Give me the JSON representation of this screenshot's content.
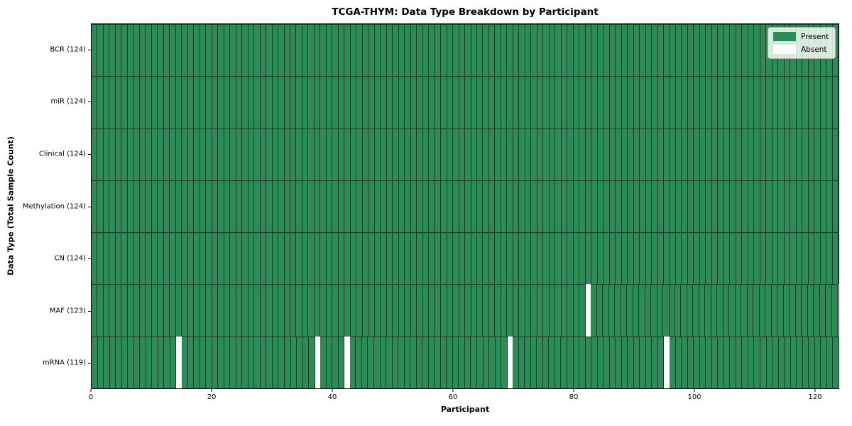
{
  "chart_data": {
    "type": "heatmap",
    "title": "TCGA-THYM: Data Type Breakdown by Participant",
    "xlabel": "Participant",
    "ylabel": "Data Type (Total Sample Count)",
    "n_participants": 124,
    "xlim": [
      0,
      124
    ],
    "x_ticks": [
      0,
      20,
      40,
      60,
      80,
      100,
      120
    ],
    "rows": [
      {
        "label": "BCR (124)",
        "data_type": "BCR",
        "total": 124,
        "absent_participants": []
      },
      {
        "label": "miR (124)",
        "data_type": "miR",
        "total": 124,
        "absent_participants": []
      },
      {
        "label": "Clinical (124)",
        "data_type": "Clinical",
        "total": 124,
        "absent_participants": []
      },
      {
        "label": "Methylation (124)",
        "data_type": "Methylation",
        "total": 124,
        "absent_participants": []
      },
      {
        "label": "CN (124)",
        "data_type": "CN",
        "total": 124,
        "absent_participants": []
      },
      {
        "label": "MAF (123)",
        "data_type": "MAF",
        "total": 123,
        "absent_participants": [
          82
        ]
      },
      {
        "label": "mRNA (119)",
        "data_type": "mRNA",
        "total": 119,
        "absent_participants": [
          14,
          37,
          42,
          69,
          95
        ]
      }
    ],
    "legend": [
      {
        "label": "Present",
        "color": "#2e8b57"
      },
      {
        "label": "Absent",
        "color": "#ffffff"
      }
    ],
    "legend_position": "upper right",
    "colors": {
      "present": "#2e8b57",
      "absent": "#ffffff",
      "cell_edge": "rgba(0,0,0,0.55)",
      "frame": "#000000"
    },
    "grid": "cell-borders"
  }
}
